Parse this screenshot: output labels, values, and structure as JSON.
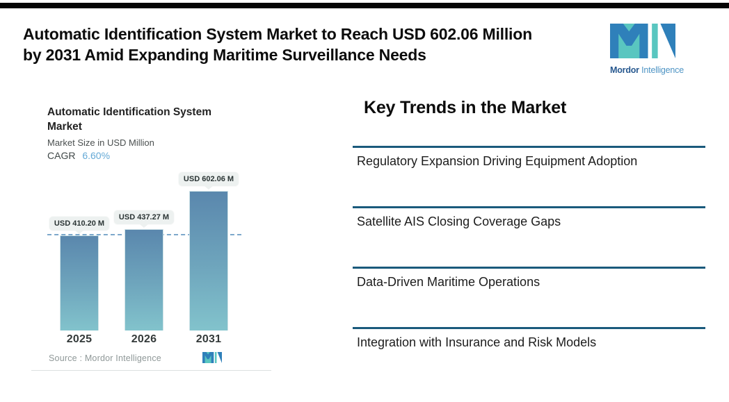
{
  "header": {
    "headline": "Automatic Identification System Market to Reach USD 602.06 Million by 2031 Amid Expanding Maritime Surveillance Needs"
  },
  "brand": {
    "name_bold": "Mordor",
    "name_light": "Intelligence"
  },
  "chart_card": {
    "title": "Automatic Identification System Market",
    "subtitle": "Market Size in USD Million",
    "cagr_label": "CAGR",
    "cagr_value": "6.60%",
    "source_text": "Source :  Mordor Intelligence"
  },
  "chart_data": {
    "type": "bar",
    "title": "Automatic Identification System Market",
    "ylabel": "Market Size in USD Million",
    "cagr": "6.60%",
    "categories": [
      "2025",
      "2026",
      "2031"
    ],
    "values": [
      410.2,
      437.27,
      602.06
    ],
    "value_labels": [
      "USD 410.20 M",
      "USD 437.27 M",
      "USD 602.06 M"
    ],
    "unit": "USD Million",
    "baseline_reference_value": 410.2,
    "ylim": [
      0,
      650
    ],
    "grid": false,
    "legend": false
  },
  "trends": {
    "heading": "Key Trends in the Market",
    "items": [
      "Regulatory Expansion Driving Equipment Adoption",
      "Satellite AIS Closing Coverage Gaps",
      "Data-Driven Maritime Operations",
      "Integration with Insurance and Risk Models"
    ]
  },
  "colors": {
    "brand_teal": "#59C6C0",
    "brand_blue": "#2F80BA",
    "trend_rule": "#1A5A7C",
    "cagr_blue": "#64A9D6",
    "bar_gradient_top": "#5A87AD",
    "bar_gradient_bottom": "#82C3CC",
    "dashed_line": "#7CA8CB",
    "callout_bg": "#EDF1F0",
    "top_bar": "#050505"
  }
}
